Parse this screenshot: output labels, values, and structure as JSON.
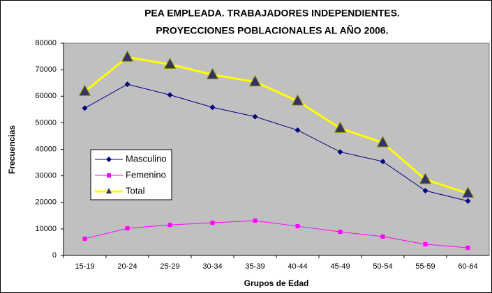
{
  "chart_data": {
    "type": "line",
    "title": "PEA EMPLEADA. TRABAJADORES INDEPENDIENTES.",
    "subtitle": "PROYECCIONES POBLACIONALES AL AÑO 2006.",
    "x_label": "Grupos de Edad",
    "y_label": "Frecuencias",
    "categories": [
      "15-19",
      "20-24",
      "25-29",
      "30-34",
      "35-39",
      "40-44",
      "45-49",
      "50-54",
      "55-59",
      "60-64"
    ],
    "series": [
      {
        "name": "Masculino",
        "color": "#000080",
        "marker": "diamond",
        "values": [
          55500,
          64500,
          60500,
          55800,
          52300,
          47200,
          39000,
          35400,
          24400,
          20500
        ]
      },
      {
        "name": "Femenino",
        "color": "#ff00ff",
        "marker": "square",
        "values": [
          6300,
          10200,
          11500,
          12300,
          13100,
          11000,
          8900,
          7100,
          4200,
          2900
        ]
      },
      {
        "name": "Total",
        "color": "#ffff00",
        "marker": "triangle",
        "values": [
          61800,
          74700,
          72000,
          68100,
          65400,
          58200,
          47900,
          42500,
          28600,
          23400
        ]
      }
    ],
    "ylim": [
      0,
      80000
    ],
    "yticks": [
      0,
      10000,
      20000,
      30000,
      40000,
      50000,
      60000,
      70000,
      80000
    ],
    "grid": false
  }
}
